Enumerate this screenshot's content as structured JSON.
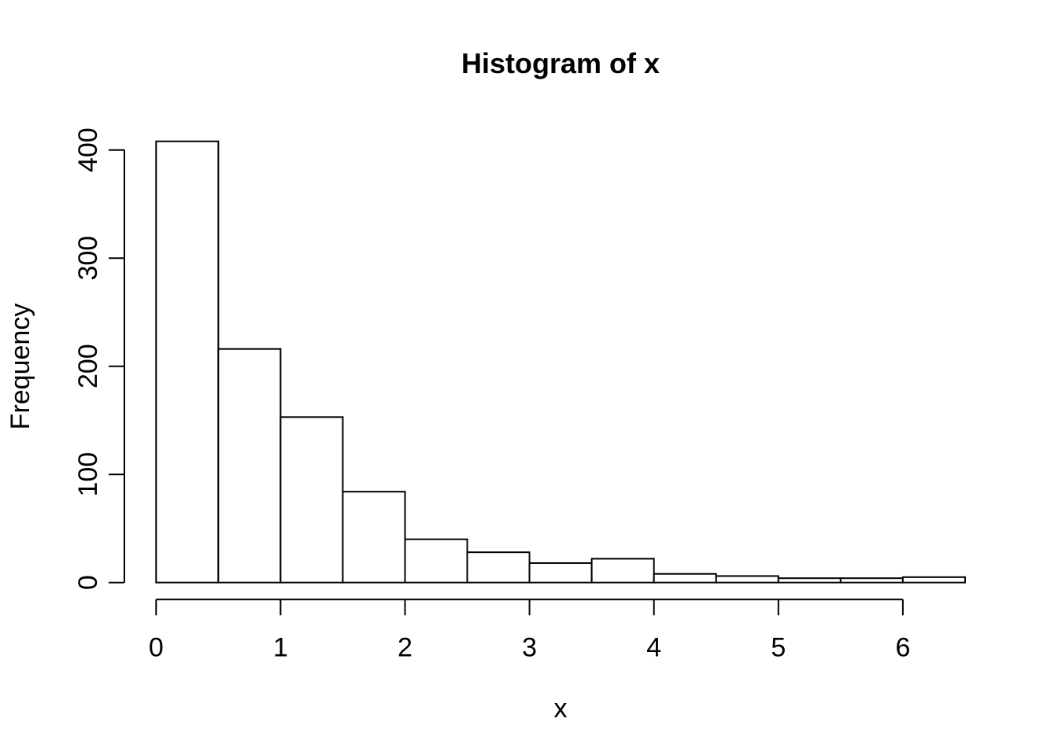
{
  "figure": {
    "background": "#ffffff",
    "foreground": "#000000"
  },
  "chart_data": {
    "type": "bar",
    "subtype": "histogram",
    "title": "Histogram of x",
    "xlabel": "x",
    "ylabel": "Frequency",
    "breaks": [
      0,
      0.5,
      1,
      1.5,
      2,
      2.5,
      3,
      3.5,
      4,
      4.5,
      5,
      5.5,
      6,
      6.5
    ],
    "counts": [
      408,
      216,
      153,
      84,
      40,
      28,
      18,
      22,
      8,
      6,
      4,
      4,
      5
    ],
    "categories": [
      "0-0.5",
      "0.5-1",
      "1-1.5",
      "1.5-2",
      "2-2.5",
      "2.5-3",
      "3-3.5",
      "3.5-4",
      "4-4.5",
      "4.5-5",
      "5-5.5",
      "5.5-6",
      "6-6.5"
    ],
    "x_ticks": [
      0,
      1,
      2,
      3,
      4,
      5,
      6
    ],
    "y_ticks": [
      0,
      100,
      200,
      300,
      400
    ],
    "xlim": [
      0,
      6.5
    ],
    "ylim": [
      0,
      400
    ],
    "grid": "off",
    "legend": "none",
    "bar_fill": "#ffffff",
    "bar_stroke": "#000000",
    "axis_color": "#000000"
  }
}
